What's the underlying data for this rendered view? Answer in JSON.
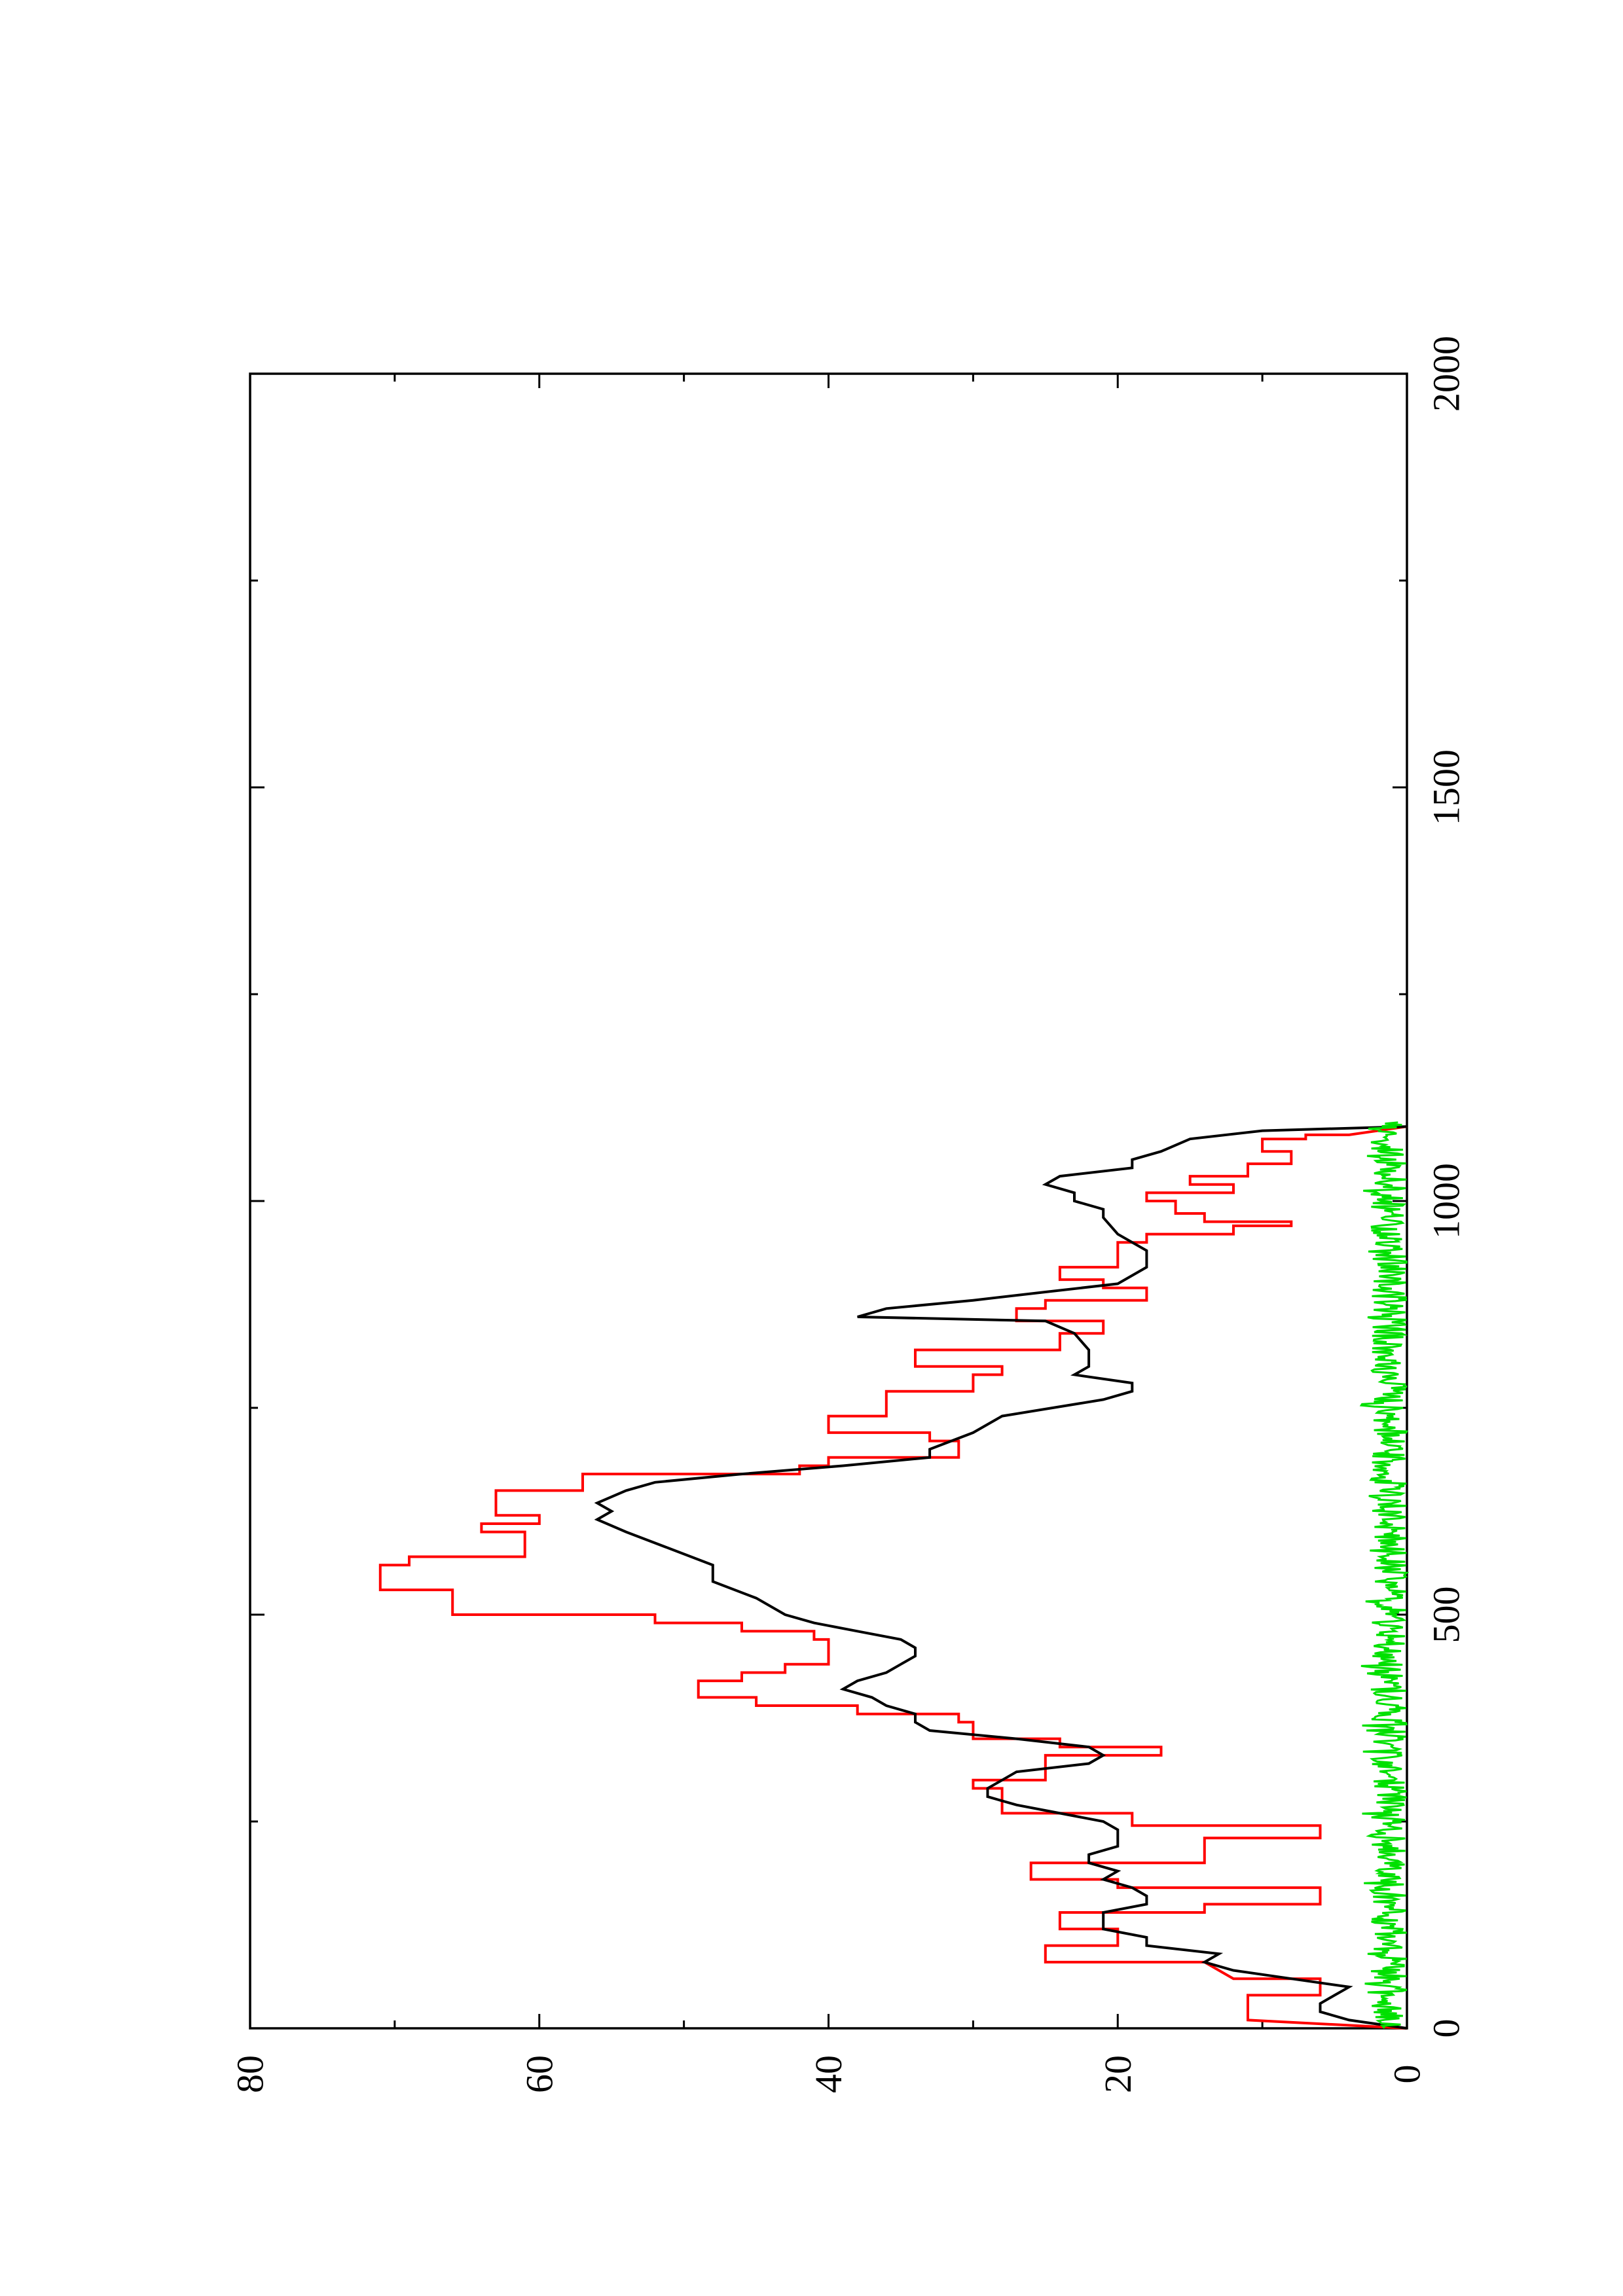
{
  "chart_data": {
    "type": "line",
    "orientation": "rotated-90-counterclockwise",
    "title": "",
    "xlabel": "",
    "ylabel": "",
    "xlim": [
      0,
      2000
    ],
    "ylim": [
      0,
      80
    ],
    "x_ticks": [
      {
        "value": 0,
        "label": "0"
      },
      {
        "value": 500,
        "label": "500"
      },
      {
        "value": 1000,
        "label": "1000"
      },
      {
        "value": 1500,
        "label": "1500"
      },
      {
        "value": 2000,
        "label": "2000"
      }
    ],
    "x_minor_ticks": [
      250,
      750,
      1250,
      1750
    ],
    "y_ticks": [
      {
        "value": 0,
        "label": "0"
      },
      {
        "value": 20,
        "label": "20"
      },
      {
        "value": 40,
        "label": "40"
      },
      {
        "value": 60,
        "label": "60"
      },
      {
        "value": 80,
        "label": "80"
      }
    ],
    "y_minor_ticks": [
      10,
      30,
      50,
      70
    ],
    "grid": false,
    "series": [
      {
        "color": "#ff0000",
        "step": true,
        "points": [
          [
            0,
            0
          ],
          [
            10,
            11
          ],
          [
            40,
            11
          ],
          [
            40,
            6
          ],
          [
            60,
            6
          ],
          [
            60,
            12
          ],
          [
            80,
            14
          ],
          [
            80,
            25
          ],
          [
            100,
            25
          ],
          [
            100,
            20
          ],
          [
            120,
            20
          ],
          [
            120,
            24
          ],
          [
            140,
            24
          ],
          [
            140,
            14
          ],
          [
            150,
            14
          ],
          [
            150,
            6
          ],
          [
            170,
            6
          ],
          [
            170,
            20
          ],
          [
            180,
            20
          ],
          [
            180,
            26
          ],
          [
            200,
            26
          ],
          [
            200,
            14
          ],
          [
            230,
            14
          ],
          [
            230,
            6
          ],
          [
            245,
            6
          ],
          [
            245,
            19
          ],
          [
            260,
            19
          ],
          [
            260,
            28
          ],
          [
            290,
            28
          ],
          [
            290,
            30
          ],
          [
            300,
            30
          ],
          [
            300,
            25
          ],
          [
            330,
            25
          ],
          [
            330,
            17
          ],
          [
            340,
            17
          ],
          [
            340,
            24
          ],
          [
            350,
            24
          ],
          [
            350,
            30
          ],
          [
            370,
            30
          ],
          [
            370,
            31
          ],
          [
            380,
            31
          ],
          [
            380,
            38
          ],
          [
            390,
            38
          ],
          [
            390,
            45
          ],
          [
            400,
            45
          ],
          [
            400,
            49
          ],
          [
            420,
            49
          ],
          [
            420,
            46
          ],
          [
            430,
            46
          ],
          [
            430,
            43
          ],
          [
            440,
            43
          ],
          [
            440,
            40
          ],
          [
            470,
            40
          ],
          [
            470,
            41
          ],
          [
            480,
            41
          ],
          [
            480,
            46
          ],
          [
            490,
            46
          ],
          [
            490,
            52
          ],
          [
            500,
            52
          ],
          [
            500,
            66
          ],
          [
            530,
            66
          ],
          [
            530,
            71
          ],
          [
            560,
            71
          ],
          [
            560,
            69
          ],
          [
            570,
            69
          ],
          [
            570,
            61
          ],
          [
            600,
            61
          ],
          [
            600,
            64
          ],
          [
            610,
            64
          ],
          [
            610,
            60
          ],
          [
            620,
            60
          ],
          [
            620,
            63
          ],
          [
            650,
            63
          ],
          [
            650,
            57
          ],
          [
            670,
            57
          ],
          [
            670,
            42
          ],
          [
            680,
            42
          ],
          [
            680,
            40
          ],
          [
            690,
            40
          ],
          [
            690,
            31
          ],
          [
            710,
            31
          ],
          [
            710,
            33
          ],
          [
            720,
            33
          ],
          [
            720,
            40
          ],
          [
            740,
            40
          ],
          [
            740,
            36
          ],
          [
            770,
            36
          ],
          [
            770,
            30
          ],
          [
            790,
            30
          ],
          [
            790,
            28
          ],
          [
            800,
            28
          ],
          [
            800,
            34
          ],
          [
            820,
            34
          ],
          [
            820,
            24
          ],
          [
            840,
            24
          ],
          [
            840,
            21
          ],
          [
            855,
            21
          ],
          [
            855,
            27
          ],
          [
            870,
            27
          ],
          [
            870,
            25
          ],
          [
            880,
            25
          ],
          [
            880,
            18
          ],
          [
            895,
            18
          ],
          [
            895,
            21
          ],
          [
            905,
            21
          ],
          [
            905,
            24
          ],
          [
            920,
            24
          ],
          [
            920,
            20
          ],
          [
            950,
            20
          ],
          [
            950,
            18
          ],
          [
            960,
            18
          ],
          [
            960,
            12
          ],
          [
            970,
            12
          ],
          [
            970,
            8
          ],
          [
            975,
            8
          ],
          [
            975,
            14
          ],
          [
            985,
            14
          ],
          [
            985,
            16
          ],
          [
            1000,
            16
          ],
          [
            1000,
            18
          ],
          [
            1010,
            18
          ],
          [
            1010,
            12
          ],
          [
            1020,
            12
          ],
          [
            1020,
            15
          ],
          [
            1030,
            15
          ],
          [
            1030,
            11
          ],
          [
            1045,
            11
          ],
          [
            1045,
            8
          ],
          [
            1060,
            8
          ],
          [
            1060,
            10
          ],
          [
            1075,
            10
          ],
          [
            1075,
            7
          ],
          [
            1080,
            7
          ],
          [
            1080,
            4
          ],
          [
            1090,
            0
          ]
        ]
      },
      {
        "color": "#000000",
        "step": false,
        "points": [
          [
            0,
            0
          ],
          [
            10,
            4
          ],
          [
            20,
            6
          ],
          [
            30,
            6
          ],
          [
            40,
            5
          ],
          [
            50,
            4
          ],
          [
            60,
            8
          ],
          [
            70,
            12
          ],
          [
            80,
            14
          ],
          [
            90,
            13
          ],
          [
            100,
            18
          ],
          [
            110,
            18
          ],
          [
            120,
            21
          ],
          [
            130,
            21
          ],
          [
            140,
            21
          ],
          [
            150,
            18
          ],
          [
            160,
            18
          ],
          [
            170,
            19
          ],
          [
            180,
            21
          ],
          [
            190,
            20
          ],
          [
            200,
            22
          ],
          [
            210,
            22
          ],
          [
            220,
            20
          ],
          [
            230,
            20
          ],
          [
            240,
            20
          ],
          [
            250,
            21
          ],
          [
            260,
            24
          ],
          [
            270,
            27
          ],
          [
            280,
            29
          ],
          [
            290,
            29
          ],
          [
            300,
            28
          ],
          [
            310,
            27
          ],
          [
            320,
            22
          ],
          [
            330,
            21
          ],
          [
            340,
            22
          ],
          [
            350,
            27
          ],
          [
            360,
            33
          ],
          [
            370,
            34
          ],
          [
            380,
            34
          ],
          [
            390,
            36
          ],
          [
            400,
            37
          ],
          [
            410,
            39
          ],
          [
            420,
            38
          ],
          [
            430,
            36
          ],
          [
            440,
            35
          ],
          [
            450,
            34
          ],
          [
            460,
            34
          ],
          [
            470,
            35
          ],
          [
            480,
            38
          ],
          [
            490,
            41
          ],
          [
            500,
            43
          ],
          [
            520,
            45
          ],
          [
            540,
            48
          ],
          [
            560,
            48
          ],
          [
            580,
            51
          ],
          [
            600,
            54
          ],
          [
            615,
            56
          ],
          [
            625,
            55
          ],
          [
            635,
            56
          ],
          [
            650,
            54
          ],
          [
            660,
            52
          ],
          [
            670,
            46
          ],
          [
            680,
            39
          ],
          [
            690,
            33
          ],
          [
            700,
            33
          ],
          [
            720,
            30
          ],
          [
            740,
            28
          ],
          [
            760,
            21
          ],
          [
            770,
            19
          ],
          [
            780,
            19
          ],
          [
            790,
            23
          ],
          [
            800,
            22
          ],
          [
            820,
            22
          ],
          [
            840,
            23
          ],
          [
            855,
            25
          ],
          [
            860,
            38
          ],
          [
            870,
            36
          ],
          [
            880,
            30
          ],
          [
            890,
            25
          ],
          [
            900,
            20
          ],
          [
            920,
            18
          ],
          [
            940,
            18
          ],
          [
            960,
            20
          ],
          [
            980,
            21
          ],
          [
            990,
            21
          ],
          [
            1000,
            23
          ],
          [
            1010,
            23
          ],
          [
            1020,
            25
          ],
          [
            1030,
            24
          ],
          [
            1040,
            19
          ],
          [
            1050,
            19
          ],
          [
            1060,
            17
          ],
          [
            1075,
            15
          ],
          [
            1085,
            10
          ],
          [
            1090,
            0
          ]
        ]
      },
      {
        "color": "#00e000",
        "noise": true,
        "x_range": [
          0,
          1095
        ],
        "baseline": 1.2,
        "amplitude_range": [
          0,
          2.5
        ],
        "occasional_max": 3.2
      }
    ]
  }
}
